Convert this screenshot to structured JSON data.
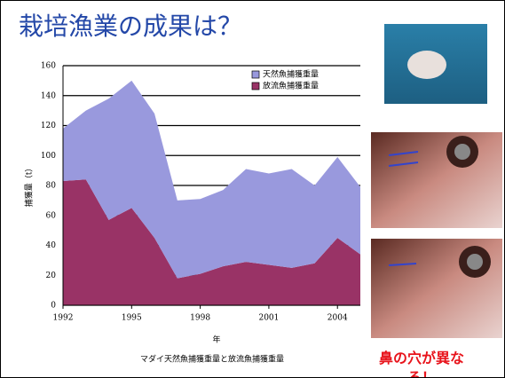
{
  "title": "栽培漁業の成果は？",
  "chart_data": {
    "type": "stacked-area",
    "x": [
      1992,
      1993,
      1994,
      1995,
      1996,
      1997,
      1998,
      1999,
      2000,
      2001,
      2002,
      2003,
      2004,
      2005
    ],
    "series": [
      {
        "name": "放流魚捕獲重量",
        "color": "#993366",
        "values": [
          83,
          84,
          57,
          65,
          45,
          18,
          21,
          26,
          29,
          27,
          25,
          28,
          45,
          34
        ]
      },
      {
        "name": "天然魚捕獲重量",
        "color": "#9999dd",
        "values": [
          35,
          46,
          81,
          85,
          83,
          52,
          50,
          51,
          62,
          61,
          66,
          52,
          54,
          45
        ]
      }
    ],
    "xlim": [
      1992,
      2005
    ],
    "xticks": [
      1992,
      1995,
      1998,
      2001,
      2004
    ],
    "ylim": [
      0,
      160
    ],
    "yticks": [
      0,
      20,
      40,
      60,
      80,
      100,
      120,
      140,
      160
    ],
    "xlabel": "年",
    "ylabel": "捕獲量（t）",
    "grid": true
  },
  "caption": "マダイ天然魚捕獲重量と放流魚捕獲重量",
  "photo_note": "鼻の穴が異なる！"
}
